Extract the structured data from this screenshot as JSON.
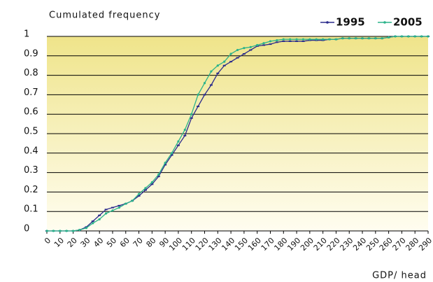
{
  "chart_data": {
    "type": "line",
    "title": "Cumulated frequency",
    "x_label": "GDP/ head",
    "x": [
      0,
      5,
      10,
      15,
      20,
      25,
      30,
      35,
      40,
      45,
      50,
      55,
      60,
      65,
      70,
      75,
      80,
      85,
      90,
      95,
      100,
      105,
      110,
      115,
      120,
      125,
      130,
      135,
      140,
      145,
      150,
      155,
      160,
      165,
      170,
      175,
      180,
      185,
      190,
      195,
      200,
      205,
      210,
      215,
      220,
      225,
      230,
      235,
      240,
      245,
      250,
      255,
      260,
      265,
      270,
      275,
      280,
      285,
      290
    ],
    "series": [
      {
        "name": "1995",
        "color": "#2b2b8c",
        "values": [
          0,
          0,
          0,
          0,
          0,
          0.005,
          0.02,
          0.05,
          0.08,
          0.11,
          0.12,
          0.13,
          0.14,
          0.155,
          0.18,
          0.21,
          0.24,
          0.28,
          0.34,
          0.39,
          0.44,
          0.49,
          0.58,
          0.64,
          0.7,
          0.75,
          0.81,
          0.85,
          0.87,
          0.89,
          0.91,
          0.93,
          0.95,
          0.955,
          0.96,
          0.97,
          0.975,
          0.975,
          0.975,
          0.975,
          0.98,
          0.98,
          0.98,
          0.985,
          0.985,
          0.99,
          0.99,
          0.99,
          0.99,
          0.99,
          0.99,
          0.99,
          0.995,
          1,
          1,
          1,
          1,
          1,
          1
        ]
      },
      {
        "name": "2005",
        "color": "#2bb38a",
        "values": [
          0,
          0,
          0,
          0,
          0,
          0.005,
          0.015,
          0.04,
          0.06,
          0.09,
          0.105,
          0.12,
          0.14,
          0.155,
          0.19,
          0.22,
          0.25,
          0.29,
          0.35,
          0.4,
          0.46,
          0.52,
          0.6,
          0.7,
          0.76,
          0.82,
          0.85,
          0.87,
          0.91,
          0.93,
          0.94,
          0.945,
          0.955,
          0.965,
          0.975,
          0.98,
          0.985,
          0.985,
          0.985,
          0.985,
          0.985,
          0.985,
          0.985,
          0.985,
          0.985,
          0.99,
          0.99,
          0.99,
          0.99,
          0.99,
          0.99,
          0.99,
          0.995,
          1,
          1,
          1,
          1,
          1,
          1
        ]
      }
    ],
    "xlim": [
      0,
      290
    ],
    "xticks": [
      0,
      10,
      20,
      30,
      40,
      50,
      60,
      70,
      80,
      90,
      100,
      110,
      120,
      130,
      140,
      150,
      160,
      170,
      180,
      190,
      200,
      210,
      220,
      230,
      240,
      250,
      260,
      270,
      280,
      290
    ],
    "ylim": [
      0,
      1
    ],
    "yticks": [
      0,
      0.1,
      0.2,
      0.3,
      0.4,
      0.5,
      0.6,
      0.7,
      0.8,
      0.9,
      1
    ],
    "grid": true,
    "legend": "top-right"
  }
}
